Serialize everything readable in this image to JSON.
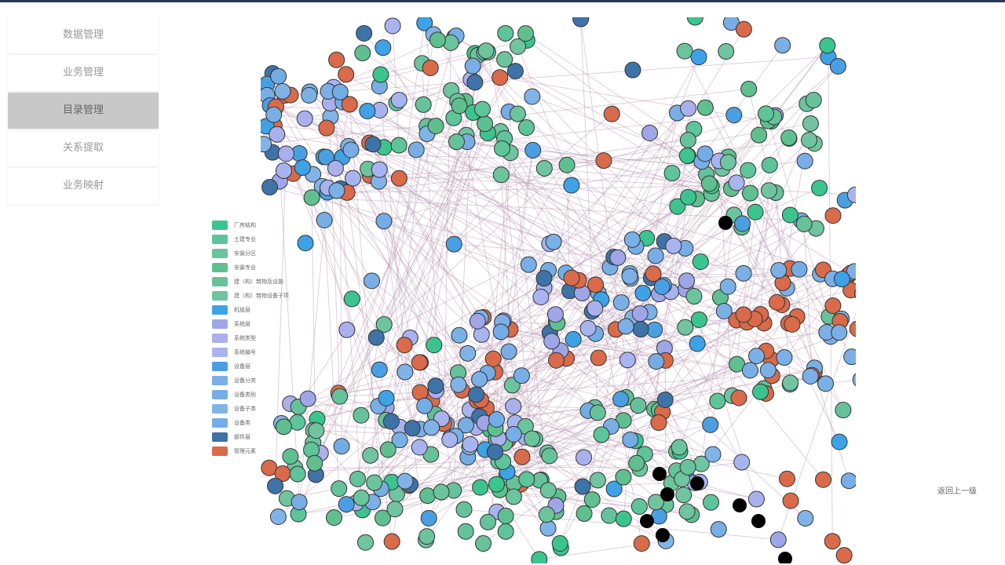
{
  "menu": {
    "items": [
      "数据管理",
      "业务管理",
      "目录管理",
      "关系提取",
      "业务映射"
    ],
    "selected": 2
  },
  "legend": {
    "items": [
      {
        "label": "厂房结构",
        "color": "#3cc48f"
      },
      {
        "label": "土建专业",
        "color": "#5ec49a"
      },
      {
        "label": "安装分区",
        "color": "#6cc49c"
      },
      {
        "label": "安装专业",
        "color": "#5fbf8f"
      },
      {
        "label": "建（构）筑物及设施",
        "color": "#66c29a"
      },
      {
        "label": "建（构）筑物设备子项",
        "color": "#70c4a0"
      },
      {
        "label": "机组层",
        "color": "#3ea2e6"
      },
      {
        "label": "系统层",
        "color": "#9fa6e8"
      },
      {
        "label": "系统类型",
        "color": "#a9b0ec"
      },
      {
        "label": "系统编号",
        "color": "#a8b4f0"
      },
      {
        "label": "设备层",
        "color": "#4a9fe3"
      },
      {
        "label": "设备分类",
        "color": "#7ab0e6"
      },
      {
        "label": "设备类别",
        "color": "#78aee5"
      },
      {
        "label": "设备子类",
        "color": "#80b4e8"
      },
      {
        "label": "设备类",
        "color": "#74ace6"
      },
      {
        "label": "部件层",
        "color": "#3e73a8"
      },
      {
        "label": "管理元素",
        "color": "#d96a4a"
      }
    ]
  },
  "back_button": "返回上一级"
}
